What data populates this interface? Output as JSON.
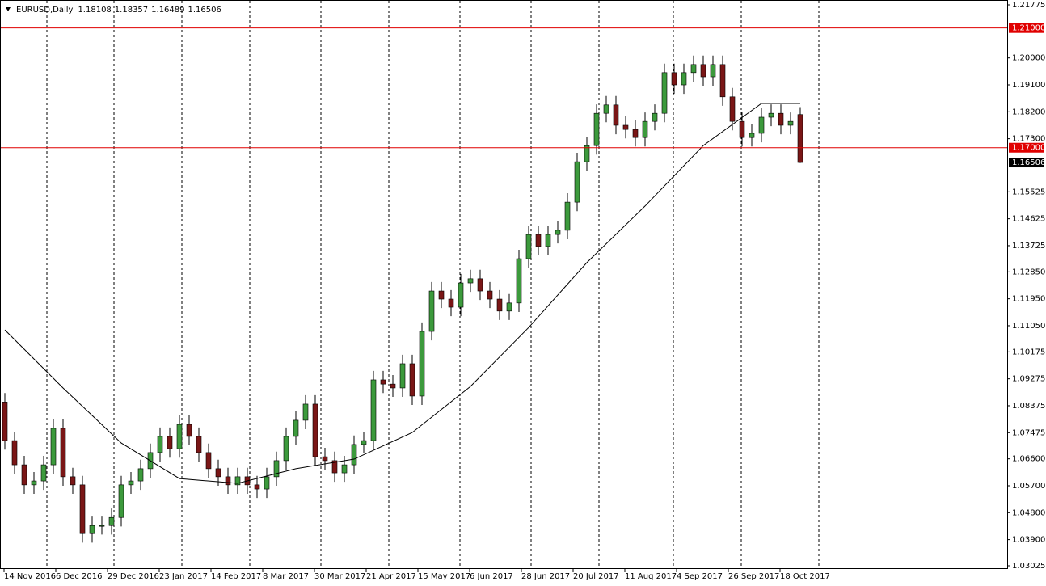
{
  "chart_data": {
    "type": "candlestick",
    "symbol": "EURUSD,Daily",
    "up_color": "#3c9a3c",
    "down_color": "#7a1616",
    "ma_color": "#000000",
    "level_color": "#e00000",
    "ylim": [
      1.03025,
      1.21775
    ],
    "yticks": [
      1.21775,
      {
        "value": 1.2,
        "label": "1.20000"
      },
      {
        "value": 1.191,
        "label": "1.19100"
      },
      {
        "value": 1.182,
        "label": "1.18200"
      },
      {
        "value": 1.173,
        "label": "1.17300"
      },
      1.15525,
      1.14625,
      1.13725,
      {
        "value": 1.1285,
        "label": "1.12850"
      },
      {
        "value": 1.1195,
        "label": "1.11950"
      },
      {
        "value": 1.1105,
        "label": "1.11050"
      },
      1.10175,
      1.09275,
      1.08375,
      1.07475,
      {
        "value": 1.066,
        "label": "1.06600"
      },
      {
        "value": 1.057,
        "label": "1.05700"
      },
      {
        "value": 1.048,
        "label": "1.04800"
      },
      {
        "value": 1.039,
        "label": "1.03900"
      },
      1.03025
    ],
    "levels": [
      {
        "value": 1.21,
        "label": "1.21000"
      },
      {
        "value": 1.17,
        "label": "1.17000"
      }
    ],
    "date_labels": [
      "14 Nov 2016",
      "6 Dec 2016",
      "29 Dec 2016",
      "23 Jan 2017",
      "14 Feb 2017",
      "8 Mar 2017",
      "30 Mar 2017",
      "21 Apr 2017",
      "15 May 2017",
      "6 Jun 2017",
      "28 Jun 2017",
      "20 Jul 2017",
      "11 Aug 2017",
      "4 Sep 2017",
      "26 Sep 2017",
      "18 Oct 2017"
    ],
    "open": [
      1.085,
      1.0721,
      1.064,
      1.0573,
      1.0586,
      1.064,
      1.0762,
      1.06,
      1.0573,
      1.041,
      1.0437,
      1.0437,
      1.0464,
      1.0573,
      1.0586,
      1.0627,
      1.0681,
      1.0735,
      1.0694,
      1.0775,
      1.0735,
      1.0681,
      1.0627,
      1.06,
      1.0573,
      1.06,
      1.0573,
      1.0559,
      1.06,
      1.0654,
      1.0735,
      1.0789,
      1.0843,
      1.0667,
      1.0654,
      1.0613,
      1.064,
      1.0708,
      1.0721,
      1.0924,
      1.091,
      1.0897,
      1.0978,
      1.087,
      1.1086,
      1.1221,
      1.1194,
      1.1167,
      1.1248,
      1.1262,
      1.1221,
      1.1194,
      1.1154,
      1.1181,
      1.1329,
      1.141,
      1.137,
      1.141,
      1.1424,
      1.1518,
      1.1653,
      1.1707,
      1.1815,
      1.1843,
      1.1775,
      1.1761,
      1.1734,
      1.1788,
      1.1815,
      1.1951,
      1.191,
      1.1951,
      1.1978,
      1.1937,
      1.1978,
      1.187,
      1.1788,
      1.1734,
      1.1748,
      1.1802,
      1.1815,
      1.1775,
      1.18108
    ],
    "high": [
      1.088,
      1.0751,
      1.067,
      1.0616,
      1.067,
      1.0792,
      1.0792,
      1.063,
      1.0603,
      1.0467,
      1.0467,
      1.0494,
      1.0603,
      1.0616,
      1.0657,
      1.0711,
      1.0765,
      1.0765,
      1.0805,
      1.0805,
      1.0765,
      1.0711,
      1.0657,
      1.063,
      1.063,
      1.063,
      1.0603,
      1.063,
      1.0684,
      1.0765,
      1.0819,
      1.0873,
      1.0873,
      1.0697,
      1.0684,
      1.067,
      1.0738,
      1.0751,
      1.0954,
      1.0954,
      1.094,
      1.1008,
      1.1008,
      1.1116,
      1.1251,
      1.1251,
      1.1224,
      1.1278,
      1.1292,
      1.1292,
      1.1251,
      1.1224,
      1.1211,
      1.1359,
      1.144,
      1.144,
      1.144,
      1.1454,
      1.1548,
      1.1683,
      1.1737,
      1.1845,
      1.1873,
      1.1873,
      1.1805,
      1.1791,
      1.1818,
      1.1845,
      1.1981,
      1.1981,
      1.1981,
      1.2008,
      1.2008,
      1.2008,
      1.2008,
      1.19,
      1.1818,
      1.1778,
      1.1832,
      1.1845,
      1.1845,
      1.1818,
      1.18357
    ],
    "low": [
      1.0691,
      1.061,
      1.0543,
      1.0543,
      1.0556,
      1.061,
      1.057,
      1.0543,
      1.038,
      1.038,
      1.0407,
      1.0407,
      1.0434,
      1.0543,
      1.0556,
      1.0597,
      1.0651,
      1.0664,
      1.0664,
      1.0705,
      1.0651,
      1.0597,
      1.057,
      1.0543,
      1.0543,
      1.0543,
      1.0529,
      1.0529,
      1.057,
      1.0624,
      1.0705,
      1.0759,
      1.0637,
      1.0624,
      1.0583,
      1.0583,
      1.061,
      1.0678,
      1.0691,
      1.088,
      1.0867,
      1.0867,
      1.084,
      1.084,
      1.1056,
      1.1164,
      1.1137,
      1.1137,
      1.1218,
      1.1191,
      1.1164,
      1.1124,
      1.1124,
      1.1151,
      1.1299,
      1.134,
      1.134,
      1.138,
      1.1394,
      1.1488,
      1.1623,
      1.1677,
      1.1785,
      1.1745,
      1.1731,
      1.1704,
      1.1704,
      1.1758,
      1.1785,
      1.188,
      1.188,
      1.1921,
      1.1907,
      1.1907,
      1.184,
      1.1758,
      1.1704,
      1.1704,
      1.1718,
      1.1772,
      1.1745,
      1.1745,
      1.16489
    ],
    "close": [
      1.0721,
      1.064,
      1.0573,
      1.0586,
      1.064,
      1.0762,
      1.06,
      1.0573,
      1.041,
      1.0437,
      1.0437,
      1.0464,
      1.0573,
      1.0586,
      1.0627,
      1.0681,
      1.0735,
      1.0694,
      1.0775,
      1.0735,
      1.0681,
      1.0627,
      1.06,
      1.0573,
      1.06,
      1.0573,
      1.0559,
      1.06,
      1.0654,
      1.0735,
      1.0789,
      1.0843,
      1.0667,
      1.0654,
      1.0613,
      1.064,
      1.0708,
      1.0721,
      1.0924,
      1.091,
      1.0897,
      1.0978,
      1.087,
      1.1086,
      1.1221,
      1.1194,
      1.1167,
      1.1248,
      1.1262,
      1.1221,
      1.1194,
      1.1154,
      1.1181,
      1.1329,
      1.141,
      1.137,
      1.141,
      1.1424,
      1.1518,
      1.1653,
      1.1707,
      1.1815,
      1.1843,
      1.1775,
      1.1761,
      1.1734,
      1.1788,
      1.1815,
      1.1951,
      1.191,
      1.1951,
      1.1978,
      1.1937,
      1.1978,
      1.187,
      1.1788,
      1.1734,
      1.1748,
      1.1802,
      1.1815,
      1.1775,
      1.1788,
      1.16506
    ],
    "moving_average": {
      "x": [
        0,
        6,
        12,
        18,
        24,
        30,
        36,
        42,
        48,
        54,
        60,
        66,
        72,
        78,
        82
      ],
      "values": [
        1.1091,
        1.0897,
        1.0713,
        1.0594,
        1.0578,
        1.0627,
        1.0659,
        1.0748,
        1.0902,
        1.1099,
        1.1316,
        1.1505,
        1.1707,
        1.1848,
        1.1848
      ]
    }
  }
}
